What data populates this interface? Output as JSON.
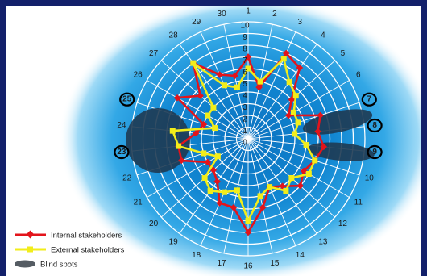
{
  "chart_data": {
    "type": "radar",
    "categories": [
      "1",
      "2",
      "3",
      "4",
      "5",
      "6",
      "7",
      "8",
      "9",
      "10",
      "11",
      "12",
      "13",
      "14",
      "15",
      "16",
      "17",
      "18",
      "19",
      "20",
      "21",
      "22",
      "23",
      "24",
      "25",
      "26",
      "27",
      "28",
      "29",
      "30"
    ],
    "radial_ticks": [
      "0",
      "1",
      "2",
      "3",
      "4",
      "5",
      "6",
      "7",
      "8",
      "9",
      "10"
    ],
    "rmax": 10,
    "highlighted_categories": [
      "7",
      "8",
      "9",
      "23",
      "25"
    ],
    "series": [
      {
        "name": "Internal stakeholders",
        "color": "#e3141b",
        "marker": "diamond",
        "values": [
          7,
          4.5,
          8,
          7.5,
          5,
          4,
          6.5,
          6,
          6.5,
          6,
          5.5,
          6,
          5,
          4.5,
          6,
          8,
          6,
          6,
          4.5,
          4,
          4,
          6,
          6,
          4.5,
          4,
          7,
          5.5,
          8,
          6,
          5.5
        ]
      },
      {
        "name": "External stakeholders",
        "color": "#f2ed1a",
        "marker": "square",
        "values": [
          6,
          5,
          7.5,
          6,
          5.5,
          4.5,
          4.5,
          4,
          5,
          6,
          6,
          5,
          5.5,
          4.5,
          5,
          7,
          4.5,
          5,
          5.5,
          5,
          3,
          4,
          6,
          6.5,
          3,
          4,
          4,
          8,
          5,
          4.5
        ]
      }
    ],
    "blind_spots_label": "Blind spots",
    "legend_position": "bottom-left"
  },
  "colors": {
    "frame": "#13206a",
    "glow_inner": "#1282cc",
    "glow_outer": "#ffffff",
    "blind_spot": "#1e3a52"
  }
}
